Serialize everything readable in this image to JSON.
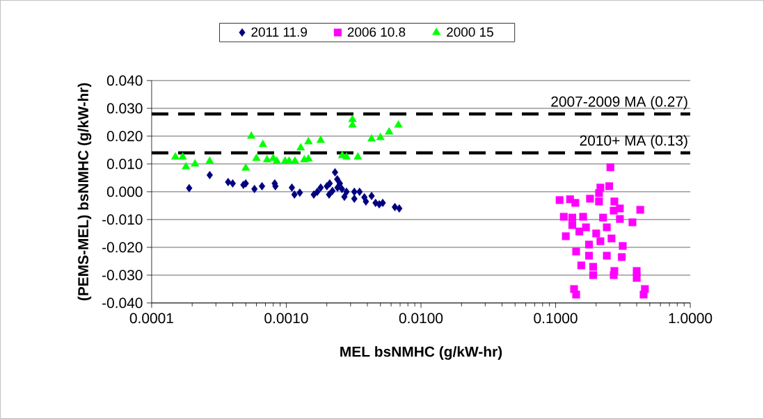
{
  "chart_data": {
    "type": "scatter",
    "xlabel": "MEL bsNMHC (g/kW-hr)",
    "ylabel": "(PEMS-MEL) bsNMHC (g/kW-hr)",
    "log": "x",
    "xlim": [
      0.0001,
      1
    ],
    "xticks": [
      {
        "value": 0.0001,
        "label": "0.0001"
      },
      {
        "value": 0.001,
        "label": "0.0010"
      },
      {
        "value": 0.01,
        "label": "0.0100"
      },
      {
        "value": 0.1,
        "label": "0.1000"
      },
      {
        "value": 1,
        "label": "1.0000"
      }
    ],
    "ylim": [
      -0.04,
      0.04
    ],
    "yticks": [
      {
        "value": -0.04,
        "label": "-0.040"
      },
      {
        "value": -0.03,
        "label": "-0.030"
      },
      {
        "value": -0.02,
        "label": "-0.020"
      },
      {
        "value": -0.01,
        "label": "-0.010"
      },
      {
        "value": 0,
        "label": "0.000"
      },
      {
        "value": 0.01,
        "label": "0.010"
      },
      {
        "value": 0.02,
        "label": "0.020"
      },
      {
        "value": 0.03,
        "label": "0.030"
      },
      {
        "value": 0.04,
        "label": "0.040"
      }
    ],
    "grid": "y",
    "legend": "top",
    "ref_lines": [
      {
        "axis": "y",
        "value": 0.028,
        "label": "2007-2009 MA (0.27)",
        "color": "#000000",
        "line_style": "dashed"
      },
      {
        "axis": "y",
        "value": 0.014,
        "label": "2010+ MA (0.13)",
        "color": "#000000",
        "line_style": "dashed"
      }
    ],
    "series": [
      {
        "name": "2011 11.9",
        "color": "#000080",
        "marker": "diamond",
        "x": [
          0.00019,
          0.00027,
          0.00037,
          0.0004,
          0.00048,
          0.0005,
          0.00058,
          0.00066,
          0.00082,
          0.00083,
          0.0011,
          0.00115,
          0.00126,
          0.0016,
          0.0017,
          0.0018,
          0.002,
          0.00208,
          0.0022,
          0.0021,
          0.0023,
          0.00239,
          0.0024,
          0.0025,
          0.00259,
          0.0028,
          0.0027,
          0.0032,
          0.0032,
          0.0035,
          0.0038,
          0.0039,
          0.0043,
          0.0046,
          0.0049,
          0.0052,
          0.0064,
          0.0069
        ],
        "values": [
          0.0013,
          0.006,
          0.0035,
          0.003,
          0.0025,
          0.003,
          0.001,
          0.002,
          0.003,
          0.002,
          0.0015,
          -0.001,
          -0.0003,
          -0.001,
          0,
          0.0015,
          0.002,
          -0.001,
          0.0003,
          0.003,
          0.007,
          0.0045,
          0.0015,
          0.003,
          0.001,
          0,
          -0.0018,
          0,
          -0.0025,
          0,
          -0.002,
          -0.0035,
          -0.0015,
          -0.004,
          -0.0045,
          -0.004,
          -0.0055,
          -0.006
        ]
      },
      {
        "name": "2006 10.8",
        "color": "#ff00ff",
        "marker": "square",
        "x": [
          0.255,
          0.25,
          0.215,
          0.107,
          0.128,
          0.14,
          0.18,
          0.21,
          0.273,
          0.3,
          0.425,
          0.115,
          0.133,
          0.16,
          0.225,
          0.3,
          0.372,
          0.133,
          0.168,
          0.24,
          0.119,
          0.15,
          0.2,
          0.26,
          0.142,
          0.177,
          0.24,
          0.315,
          0.31,
          0.155,
          0.19,
          0.19,
          0.273,
          0.27,
          0.4,
          0.4,
          0.137,
          0.142,
          0.46,
          0.45,
          0.21,
          0.27,
          0.177,
          0.215
        ],
        "values": [
          0.0088,
          0.002,
          0.0015,
          -0.003,
          -0.0027,
          -0.004,
          -0.0025,
          -0.0035,
          -0.0035,
          -0.006,
          -0.0065,
          -0.009,
          -0.0093,
          -0.009,
          -0.0093,
          -0.0098,
          -0.011,
          -0.012,
          -0.0128,
          -0.0128,
          -0.016,
          -0.0143,
          -0.015,
          -0.0168,
          -0.0215,
          -0.019,
          -0.023,
          -0.0195,
          -0.0235,
          -0.0265,
          -0.027,
          -0.03,
          -0.0285,
          -0.03,
          -0.0285,
          -0.031,
          -0.035,
          -0.037,
          -0.035,
          -0.037,
          -0.0005,
          -0.0068,
          -0.023,
          -0.0178
        ]
      },
      {
        "name": "2000 15",
        "color": "#00ff00",
        "marker": "triangle",
        "x": [
          0.00015,
          0.00017,
          0.00018,
          0.00021,
          0.00027,
          0.0005,
          0.00055,
          0.0006,
          0.00067,
          0.00072,
          0.0008,
          0.00085,
          0.00098,
          0.00105,
          0.00116,
          0.00128,
          0.00136,
          0.00146,
          0.00146,
          0.0018,
          0.0026,
          0.0028,
          0.0031,
          0.0031,
          0.0034,
          0.0043,
          0.005,
          0.0058,
          0.0068
        ],
        "values": [
          0.0125,
          0.0125,
          0.009,
          0.01,
          0.011,
          0.0085,
          0.02,
          0.012,
          0.017,
          0.0115,
          0.012,
          0.011,
          0.011,
          0.011,
          0.011,
          0.0158,
          0.0115,
          0.0118,
          0.018,
          0.0185,
          0.013,
          0.0125,
          0.026,
          0.024,
          0.0125,
          0.019,
          0.0195,
          0.0215,
          0.024
        ]
      }
    ]
  }
}
